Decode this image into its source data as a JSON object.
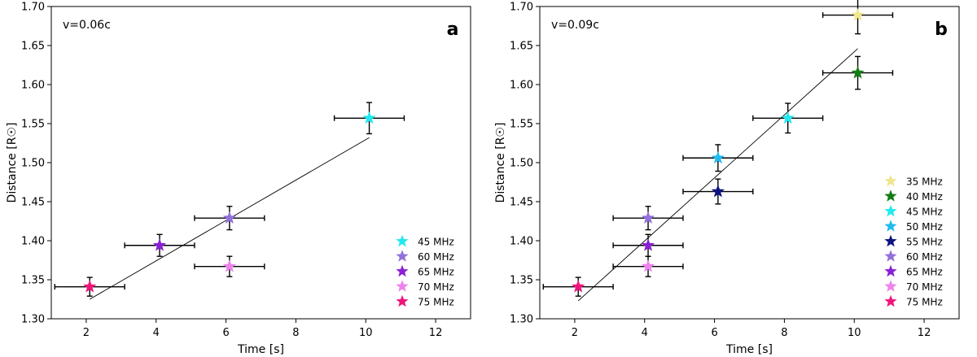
{
  "chart_data": [
    {
      "type": "scatter",
      "panel_label": "a",
      "annotation": "v=0.06c",
      "xlabel": "Time [s]",
      "ylabel": "Distance [R☉]",
      "xlim": [
        1,
        13
      ],
      "ylim": [
        1.3,
        1.7
      ],
      "xticks": [
        2,
        4,
        6,
        8,
        10,
        12
      ],
      "yticks": [
        1.3,
        1.35,
        1.4,
        1.45,
        1.5,
        1.55,
        1.6,
        1.65,
        1.7
      ],
      "x_error": 1.0,
      "fit_line": {
        "x": [
          2.1,
          10.1
        ],
        "y": [
          1.325,
          1.532
        ]
      },
      "points": [
        {
          "label": "45 MHz",
          "x": 10.1,
          "y": 1.557,
          "yerr": 0.02,
          "color": "#22e8f0"
        },
        {
          "label": "60 MHz",
          "x": 6.1,
          "y": 1.429,
          "yerr": 0.015,
          "color": "#9370db"
        },
        {
          "label": "65 MHz",
          "x": 4.1,
          "y": 1.394,
          "yerr": 0.014,
          "color": "#8a1fd6"
        },
        {
          "label": "70 MHz",
          "x": 6.1,
          "y": 1.367,
          "yerr": 0.013,
          "color": "#ee82ee"
        },
        {
          "label": "75 MHz",
          "x": 2.1,
          "y": 1.341,
          "yerr": 0.012,
          "color": "#f0147a"
        }
      ],
      "legend": [
        "45 MHz",
        "60 MHz",
        "65 MHz",
        "70 MHz",
        "75 MHz"
      ],
      "legend_location": "lower-right"
    },
    {
      "type": "scatter",
      "panel_label": "b",
      "annotation": "v=0.09c",
      "xlabel": "Time [s]",
      "ylabel": "Distance [R☉]",
      "xlim": [
        1,
        13
      ],
      "ylim": [
        1.3,
        1.7
      ],
      "xticks": [
        2,
        4,
        6,
        8,
        10,
        12
      ],
      "yticks": [
        1.3,
        1.35,
        1.4,
        1.45,
        1.5,
        1.55,
        1.6,
        1.65,
        1.7
      ],
      "x_error": 1.0,
      "fit_line": {
        "x": [
          2.1,
          10.1
        ],
        "y": [
          1.323,
          1.646
        ]
      },
      "points": [
        {
          "label": "35 MHz",
          "x": 10.1,
          "y": 1.689,
          "yerr": 0.024,
          "color": "#f0e68c"
        },
        {
          "label": "40 MHz",
          "x": 10.1,
          "y": 1.615,
          "yerr": 0.021,
          "color": "#137d13"
        },
        {
          "label": "45 MHz",
          "x": 8.1,
          "y": 1.557,
          "yerr": 0.019,
          "color": "#22e8f0"
        },
        {
          "label": "50 MHz",
          "x": 6.1,
          "y": 1.506,
          "yerr": 0.017,
          "color": "#1fbcf0"
        },
        {
          "label": "55 MHz",
          "x": 6.1,
          "y": 1.463,
          "yerr": 0.016,
          "color": "#0d1282"
        },
        {
          "label": "60 MHz",
          "x": 4.1,
          "y": 1.429,
          "yerr": 0.015,
          "color": "#9370db"
        },
        {
          "label": "65 MHz",
          "x": 4.1,
          "y": 1.394,
          "yerr": 0.014,
          "color": "#8a1fd6"
        },
        {
          "label": "70 MHz",
          "x": 4.1,
          "y": 1.367,
          "yerr": 0.013,
          "color": "#ee82ee"
        },
        {
          "label": "75 MHz",
          "x": 2.1,
          "y": 1.341,
          "yerr": 0.012,
          "color": "#f0147a"
        }
      ],
      "legend": [
        "35 MHz",
        "40 MHz",
        "45 MHz",
        "50 MHz",
        "55 MHz",
        "60 MHz",
        "65 MHz",
        "70 MHz",
        "75 MHz"
      ],
      "legend_location": "lower-right"
    }
  ]
}
